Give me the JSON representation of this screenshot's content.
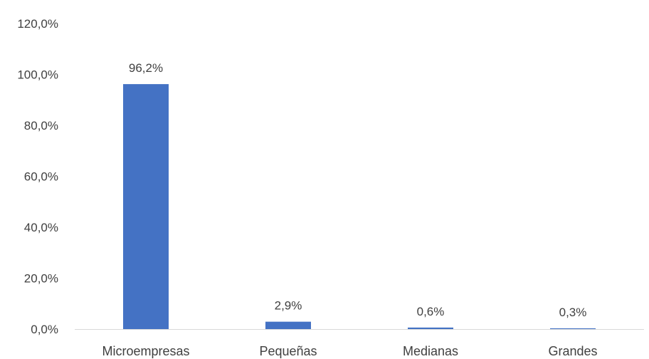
{
  "chart_data": {
    "type": "bar",
    "categories": [
      "Microempresas",
      "Pequeñas",
      "Medianas",
      "Grandes"
    ],
    "values": [
      96.2,
      2.9,
      0.6,
      0.3
    ],
    "data_labels": [
      "96,2%",
      "2,9%",
      "0,6%",
      "0,3%"
    ],
    "y_ticks": [
      0,
      20,
      40,
      60,
      80,
      100,
      120
    ],
    "y_tick_labels": [
      "0,0%",
      "20,0%",
      "40,0%",
      "60,0%",
      "80,0%",
      "100,0%",
      "120,0%"
    ],
    "ylim": [
      0,
      120
    ],
    "title": "",
    "xlabel": "",
    "ylabel": "",
    "grid": false,
    "legend": "none",
    "colors": {
      "bar": "#4472C4",
      "axis": "#D9D9D9",
      "text": "#404040"
    }
  }
}
